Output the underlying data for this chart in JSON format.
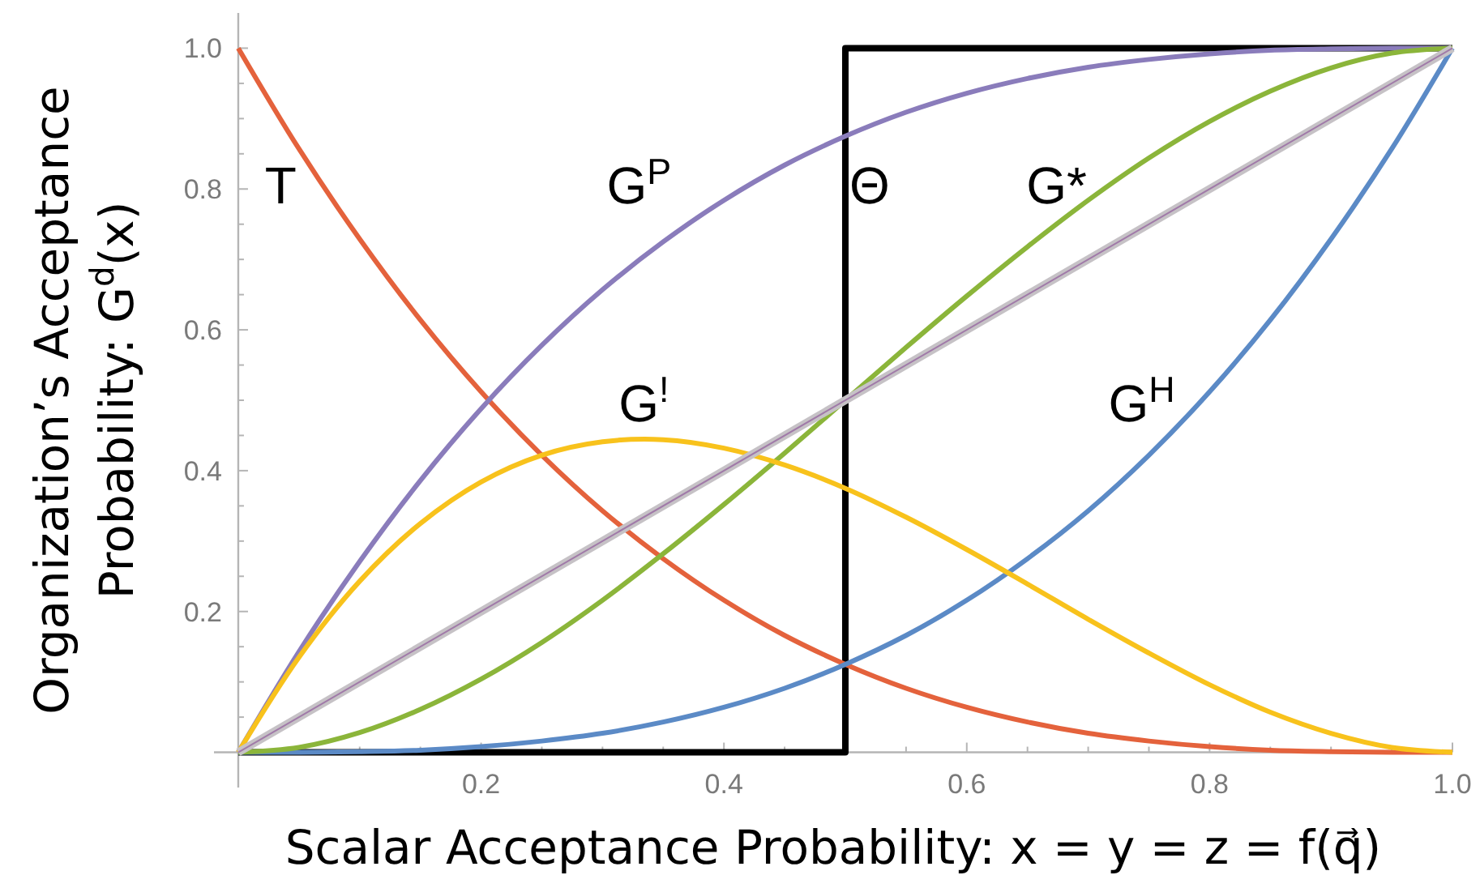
{
  "chart_data": {
    "type": "line",
    "xlabel": "Scalar Acceptance Probability: x = y = z = f(q⃗)",
    "ylabel": "Organization’s Acceptance Probability: G$^{d}$(x)",
    "x": [
      0,
      0.05,
      0.1,
      0.15,
      0.2,
      0.25,
      0.3,
      0.35,
      0.4,
      0.45,
      0.5,
      0.55,
      0.6,
      0.65,
      0.7,
      0.75,
      0.8,
      0.85,
      0.9,
      0.95,
      1
    ],
    "xlim": [
      -0.02,
      1
    ],
    "ylim": [
      -0.05,
      1.05
    ],
    "xticks": [
      {
        "value": 0.05,
        "label": null
      },
      {
        "value": 0.1,
        "label": null
      },
      {
        "value": 0.15,
        "label": null
      },
      0.2,
      {
        "value": 0.25,
        "label": null
      },
      {
        "value": 0.3,
        "label": null
      },
      {
        "value": 0.35,
        "label": null
      },
      0.4,
      {
        "value": 0.45,
        "label": null
      },
      {
        "value": 0.5,
        "label": null
      },
      {
        "value": 0.55,
        "label": null
      },
      0.6,
      {
        "value": 0.65,
        "label": null
      },
      {
        "value": 0.7,
        "label": null
      },
      {
        "value": 0.75,
        "label": null
      },
      0.8,
      {
        "value": 0.85,
        "label": null
      },
      {
        "value": 0.9,
        "label": null
      },
      {
        "value": 0.95,
        "label": null
      },
      {
        "value": 1,
        "label": "1.0"
      }
    ],
    "yticks": [
      {
        "value": 0.05,
        "label": null
      },
      {
        "value": 0.1,
        "label": null
      },
      {
        "value": 0.15,
        "label": null
      },
      0.2,
      {
        "value": 0.25,
        "label": null
      },
      {
        "value": 0.3,
        "label": null
      },
      {
        "value": 0.35,
        "label": null
      },
      0.4,
      {
        "value": 0.45,
        "label": null
      },
      {
        "value": 0.5,
        "label": null
      },
      {
        "value": 0.55,
        "label": null
      },
      0.6,
      {
        "value": 0.65,
        "label": null
      },
      {
        "value": 0.7,
        "label": null
      },
      {
        "value": 0.75,
        "label": null
      },
      0.8,
      {
        "value": 0.85,
        "label": null
      },
      {
        "value": 0.9,
        "label": null
      },
      {
        "value": 0.95,
        "label": null
      },
      {
        "value": 1,
        "label": "1.0"
      }
    ],
    "series": [
      {
        "name": "Θ",
        "type": "step",
        "color": "#000000",
        "x": [
          0,
          0.5,
          1
        ],
        "values": [
          0,
          1,
          1
        ]
      },
      {
        "name": "T",
        "color": "#e4623c",
        "values": [
          1,
          0.857,
          0.729,
          0.614,
          0.512,
          0.422,
          0.343,
          0.275,
          0.216,
          0.166,
          0.125,
          0.091,
          0.064,
          0.043,
          0.027,
          0.016,
          0.008,
          0.003,
          0.001,
          0,
          0
        ]
      },
      {
        "name": "G$^{P}$",
        "color": "#8a7cbb",
        "values": [
          0,
          0.143,
          0.271,
          0.386,
          0.488,
          0.578,
          0.657,
          0.725,
          0.784,
          0.834,
          0.875,
          0.909,
          0.936,
          0.957,
          0.973,
          0.984,
          0.992,
          0.997,
          0.999,
          1,
          1
        ]
      },
      {
        "name": "G$^{H}$",
        "color": "#5b8ac6",
        "values": [
          0,
          0,
          0.001,
          0.003,
          0.008,
          0.016,
          0.027,
          0.043,
          0.064,
          0.091,
          0.125,
          0.166,
          0.216,
          0.275,
          0.343,
          0.422,
          0.512,
          0.614,
          0.729,
          0.857,
          1
        ]
      },
      {
        "name": "G*",
        "color": "#8bb53a",
        "values": [
          0,
          0.007,
          0.028,
          0.061,
          0.104,
          0.156,
          0.216,
          0.282,
          0.352,
          0.425,
          0.5,
          0.575,
          0.648,
          0.718,
          0.784,
          0.844,
          0.896,
          0.939,
          0.972,
          0.993,
          1
        ]
      },
      {
        "name": "G$^{!}$",
        "color": "#f8c21c",
        "values": [
          0,
          0.135,
          0.243,
          0.325,
          0.384,
          0.422,
          0.441,
          0.444,
          0.432,
          0.408,
          0.375,
          0.334,
          0.288,
          0.239,
          0.189,
          0.141,
          0.096,
          0.057,
          0.027,
          0.007,
          0
        ]
      },
      {
        "color": "#c6c2c6",
        "x": [
          0,
          1
        ],
        "values": [
          0,
          1
        ]
      },
      {
        "color": "#a07aa8",
        "x": [
          0,
          1
        ],
        "values": [
          0,
          1
        ]
      }
    ]
  }
}
